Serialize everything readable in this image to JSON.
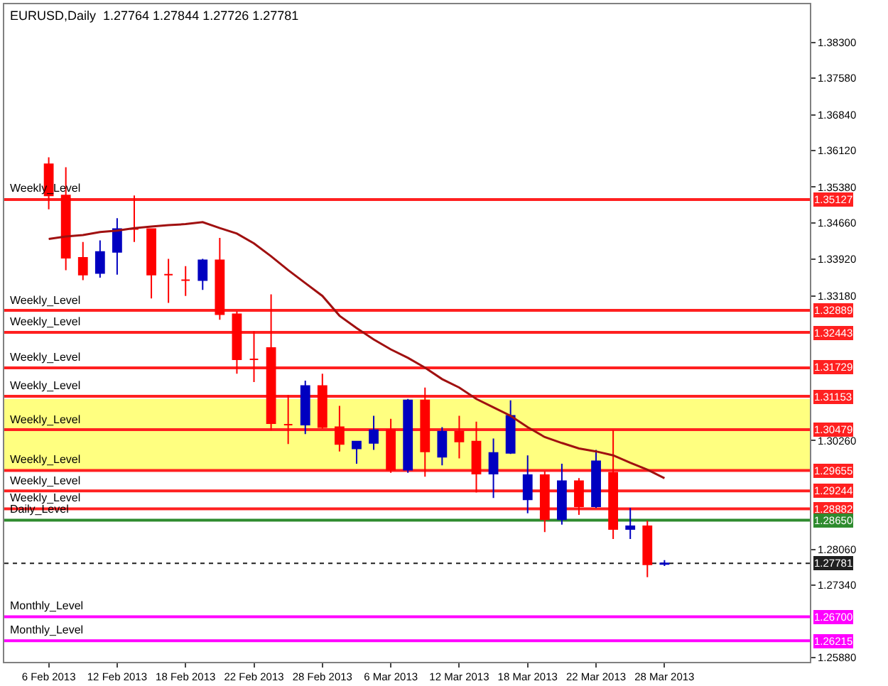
{
  "chart_data": {
    "type": "candlestick",
    "title": "EURUSD,Daily  1.27764 1.27844 1.27726 1.27781",
    "categories": [
      "6 Feb 2013",
      null,
      null,
      null,
      "12 Feb 2013",
      null,
      null,
      null,
      "18 Feb 2013",
      null,
      null,
      null,
      "22 Feb 2013",
      null,
      null,
      null,
      "28 Feb 2013",
      null,
      null,
      null,
      "6 Mar 2013",
      null,
      null,
      null,
      "12 Mar 2013",
      null,
      null,
      null,
      "18 Mar 2013",
      null,
      null,
      null,
      "22 Mar 2013",
      null,
      null,
      null,
      "28 Mar 2013",
      null,
      null,
      null,
      null,
      null,
      null,
      null,
      null
    ],
    "ohlc": [
      [
        1.3584,
        1.3598,
        1.3493,
        1.3521
      ],
      [
        1.3521,
        1.3578,
        1.337,
        1.3395
      ],
      [
        1.3395,
        1.3427,
        1.335,
        1.3361
      ],
      [
        1.3364,
        1.343,
        1.3355,
        1.3407
      ],
      [
        1.3407,
        1.3475,
        1.3361,
        1.3453
      ],
      [
        1.3453,
        1.3521,
        1.3427,
        1.3453
      ],
      [
        1.3453,
        1.3453,
        1.3313,
        1.3361
      ],
      [
        1.3361,
        1.3393,
        1.3304,
        1.3361
      ],
      [
        1.335,
        1.3378,
        1.3318,
        1.335
      ],
      [
        1.335,
        1.3393,
        1.333,
        1.339
      ],
      [
        1.339,
        1.3435,
        1.327,
        1.3281
      ],
      [
        1.3281,
        1.3287,
        1.3161,
        1.319
      ],
      [
        1.319,
        1.3247,
        1.3144,
        1.319
      ],
      [
        1.3213,
        1.3321,
        1.3047,
        1.3061
      ],
      [
        1.3058,
        1.3118,
        1.3019,
        1.3058
      ],
      [
        1.3058,
        1.3147,
        1.3039,
        1.3136
      ],
      [
        1.3136,
        1.3161,
        1.305,
        1.3053
      ],
      [
        1.3053,
        1.3096,
        1.3004,
        1.3019
      ],
      [
        1.301,
        1.3024,
        1.2979,
        1.3024
      ],
      [
        1.3021,
        1.3076,
        1.3007,
        1.3047
      ],
      [
        1.3047,
        1.307,
        1.2961,
        1.2967
      ],
      [
        1.2967,
        1.311,
        1.2961,
        1.3107
      ],
      [
        1.3107,
        1.3133,
        1.2953,
        1.3004
      ],
      [
        1.2993,
        1.3053,
        1.2976,
        1.3044
      ],
      [
        1.3044,
        1.3076,
        1.299,
        1.3024
      ],
      [
        1.3024,
        1.3064,
        1.2921,
        1.2959
      ],
      [
        1.2959,
        1.303,
        1.291,
        1.3001
      ],
      [
        1.3001,
        1.3107,
        1.2999,
        1.3076
      ],
      [
        1.2907,
        1.2996,
        1.2879,
        1.2956
      ],
      [
        1.2956,
        1.2964,
        1.2841,
        1.2867
      ],
      [
        1.2867,
        1.2979,
        1.2856,
        1.2944
      ],
      [
        1.2944,
        1.295,
        1.2876,
        1.2893
      ],
      [
        1.2893,
        1.3007,
        1.289,
        1.2984
      ],
      [
        1.2961,
        1.3047,
        1.2827,
        1.2847
      ],
      [
        1.2847,
        1.289,
        1.2827,
        1.2853
      ],
      [
        1.2853,
        1.2864,
        1.275,
        1.2776
      ],
      [
        1.27764,
        1.27844,
        1.27726,
        1.27781
      ],
      null,
      null,
      null,
      null,
      null,
      null,
      null,
      null
    ],
    "colors": [
      "#ff0000",
      "#ff0000",
      "#ff0000",
      "#0000c0",
      "#0000c0",
      "#ff0000",
      "#ff0000",
      "#ff0000",
      "#ff0000",
      "#0000c0",
      "#ff0000",
      "#ff0000",
      "#ff0000",
      "#ff0000",
      "#ff0000",
      "#0000c0",
      "#ff0000",
      "#ff0000",
      "#0000c0",
      "#0000c0",
      "#ff0000",
      "#0000c0",
      "#ff0000",
      "#0000c0",
      "#ff0000",
      "#ff0000",
      "#0000c0",
      "#0000c0",
      "#0000c0",
      "#ff0000",
      "#0000c0",
      "#ff0000",
      "#0000c0",
      "#ff0000",
      "#0000c0",
      "#ff0000",
      "#0000c0",
      null,
      null,
      null,
      null,
      null,
      null,
      null,
      null
    ],
    "series": [
      {
        "type": "line",
        "color": "#a01010",
        "values": [
          1.3433,
          1.3438,
          1.3441,
          1.3447,
          1.345,
          1.3455,
          1.3458,
          1.3461,
          1.3463,
          1.3467,
          1.3455,
          1.3444,
          1.3424,
          1.3398,
          1.337,
          1.3344,
          1.3318,
          1.3278,
          1.3253,
          1.323,
          1.321,
          1.3193,
          1.3173,
          1.315,
          1.3133,
          1.311,
          1.3093,
          1.3076,
          1.3053,
          1.3033,
          1.3021,
          1.301,
          1.3004,
          1.2996,
          1.2981,
          1.2967,
          1.295,
          null,
          null,
          null,
          null,
          null,
          null,
          null,
          null
        ]
      }
    ],
    "ylim": [
      1.2579,
      1.3907
    ],
    "yticks": [
      {
        "value": 1.383,
        "label": "1.38300"
      },
      {
        "value": 1.3758,
        "label": "1.37580"
      },
      {
        "value": 1.3684,
        "label": "1.36840"
      },
      {
        "value": 1.3612,
        "label": "1.36120"
      },
      {
        "value": 1.3538,
        "label": "1.35380"
      },
      {
        "value": 1.3466,
        "label": "1.34660"
      },
      {
        "value": 1.3392,
        "label": "1.33920"
      },
      {
        "value": 1.3318,
        "label": "1.33180"
      },
      {
        "value": 1.3026,
        "label": "1.30260"
      },
      {
        "value": 1.2806,
        "label": "1.28060"
      },
      {
        "value": 1.2734,
        "label": "1.27340"
      },
      {
        "value": 1.2588,
        "label": "1.25880"
      }
    ],
    "bands": [
      {
        "axis": "y",
        "from": 1.2964,
        "to": 1.311,
        "color": "#ffff80"
      }
    ],
    "ref_lines": [
      {
        "axis": "y",
        "value": 1.35127,
        "label": "1.35127",
        "color": "#ff2020"
      },
      {
        "axis": "y",
        "value": 1.32889,
        "label": "1.32889",
        "color": "#ff2020"
      },
      {
        "axis": "y",
        "value": 1.32443,
        "label": "1.32443",
        "color": "#ff2020"
      },
      {
        "axis": "y",
        "value": 1.31729,
        "label": "1.31729",
        "color": "#ff2020"
      },
      {
        "axis": "y",
        "value": 1.31153,
        "label": "1.31153",
        "color": "#ff2020"
      },
      {
        "axis": "y",
        "value": 1.30479,
        "label": "1.30479",
        "color": "#ff2020"
      },
      {
        "axis": "y",
        "value": 1.29655,
        "label": "1.29655",
        "color": "#ff2020"
      },
      {
        "axis": "y",
        "value": 1.29244,
        "label": "1.29244",
        "color": "#ff2020"
      },
      {
        "axis": "y",
        "value": 1.28882,
        "label": "1.28882",
        "color": "#ff2020"
      },
      {
        "axis": "y",
        "value": 1.2865,
        "label": "1.28650",
        "color": "#2e8b2e"
      },
      {
        "axis": "y",
        "value": 1.27781,
        "label": "1.27781",
        "color": "#202020",
        "line_style": "dotted"
      },
      {
        "axis": "y",
        "value": 1.267,
        "label": "1.26700",
        "color": "#ff00ff"
      },
      {
        "axis": "y",
        "value": 1.26215,
        "label": "1.26215",
        "color": "#ff00ff"
      }
    ],
    "annotations": [
      {
        "text": "Weekly_Level",
        "y": 1.35127
      },
      {
        "text": "Weekly_Level",
        "y": 1.32889
      },
      {
        "text": "Weekly_Level",
        "y": 1.32443
      },
      {
        "text": "Weekly_Level",
        "y": 1.31729
      },
      {
        "text": "Weekly_Level",
        "y": 1.31153
      },
      {
        "text": "Weekly_Level",
        "y": 1.30479
      },
      {
        "text": "Weekly_Level",
        "y": 1.29655
      },
      {
        "text": "Weekly_Level",
        "y": 1.29244
      },
      {
        "text": "Weekly_Level",
        "y": 1.28882
      },
      {
        "text": "Daily_Level",
        "y": 1.2865
      },
      {
        "text": "Monthly_Level",
        "y": 1.267
      },
      {
        "text": "Monthly_Level",
        "y": 1.26215
      }
    ]
  }
}
